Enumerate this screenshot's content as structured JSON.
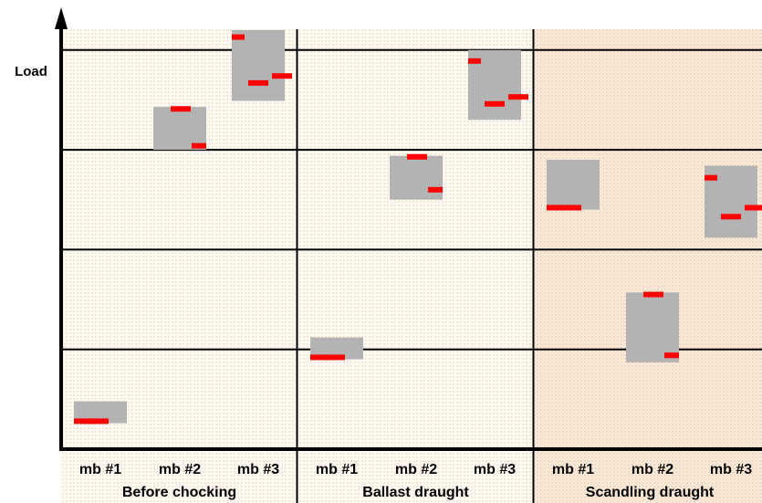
{
  "chart_data": {
    "type": "bar",
    "title": "",
    "xlabel": "",
    "ylabel": "Load",
    "ylim": [
      0,
      4.2
    ],
    "grid": true,
    "groups": [
      {
        "name": "Before chocking",
        "categories": [
          "mb #1",
          "mb #2",
          "mb #3"
        ]
      },
      {
        "name": "Ballast draught",
        "categories": [
          "mb #1",
          "mb #2",
          "mb #3"
        ]
      },
      {
        "name": "Scandling draught",
        "categories": [
          "mb #1",
          "mb #2",
          "mb #3"
        ]
      }
    ],
    "boxes": [
      {
        "group": "Before chocking",
        "category": "mb #1",
        "low": 0.26,
        "high": 0.48,
        "marks": [
          0.28,
          0.28
        ]
      },
      {
        "group": "Before chocking",
        "category": "mb #2",
        "low": 3.0,
        "high": 3.43,
        "marks": [
          3.41,
          3.04
        ]
      },
      {
        "group": "Before chocking",
        "category": "mb #3",
        "low": 3.49,
        "high": 4.2,
        "marks": [
          4.13,
          3.67,
          3.74
        ]
      },
      {
        "group": "Ballast draught",
        "category": "mb #1",
        "low": 0.9,
        "high": 1.12,
        "marks": [
          0.92,
          0.92
        ]
      },
      {
        "group": "Ballast draught",
        "category": "mb #2",
        "low": 2.5,
        "high": 2.94,
        "marks": [
          2.93,
          2.6
        ]
      },
      {
        "group": "Ballast draught",
        "category": "mb #3",
        "low": 3.3,
        "high": 4.0,
        "marks": [
          3.89,
          3.46,
          3.53
        ]
      },
      {
        "group": "Scandling draught",
        "category": "mb #1",
        "low": 2.4,
        "high": 2.9,
        "marks": [
          2.42,
          2.42
        ]
      },
      {
        "group": "Scandling draught",
        "category": "mb #2",
        "low": 0.87,
        "high": 1.57,
        "marks": [
          1.55,
          0.94
        ]
      },
      {
        "group": "Scandling draught",
        "category": "mb #3",
        "low": 2.12,
        "high": 2.84,
        "marks": [
          2.72,
          2.33,
          2.42
        ]
      }
    ],
    "colors": {
      "box": "#b3b3b3",
      "mark": "#ff0000",
      "band_light": "#fdf5ec",
      "band_dark": "#fae9d8",
      "grid": "#000000"
    }
  }
}
